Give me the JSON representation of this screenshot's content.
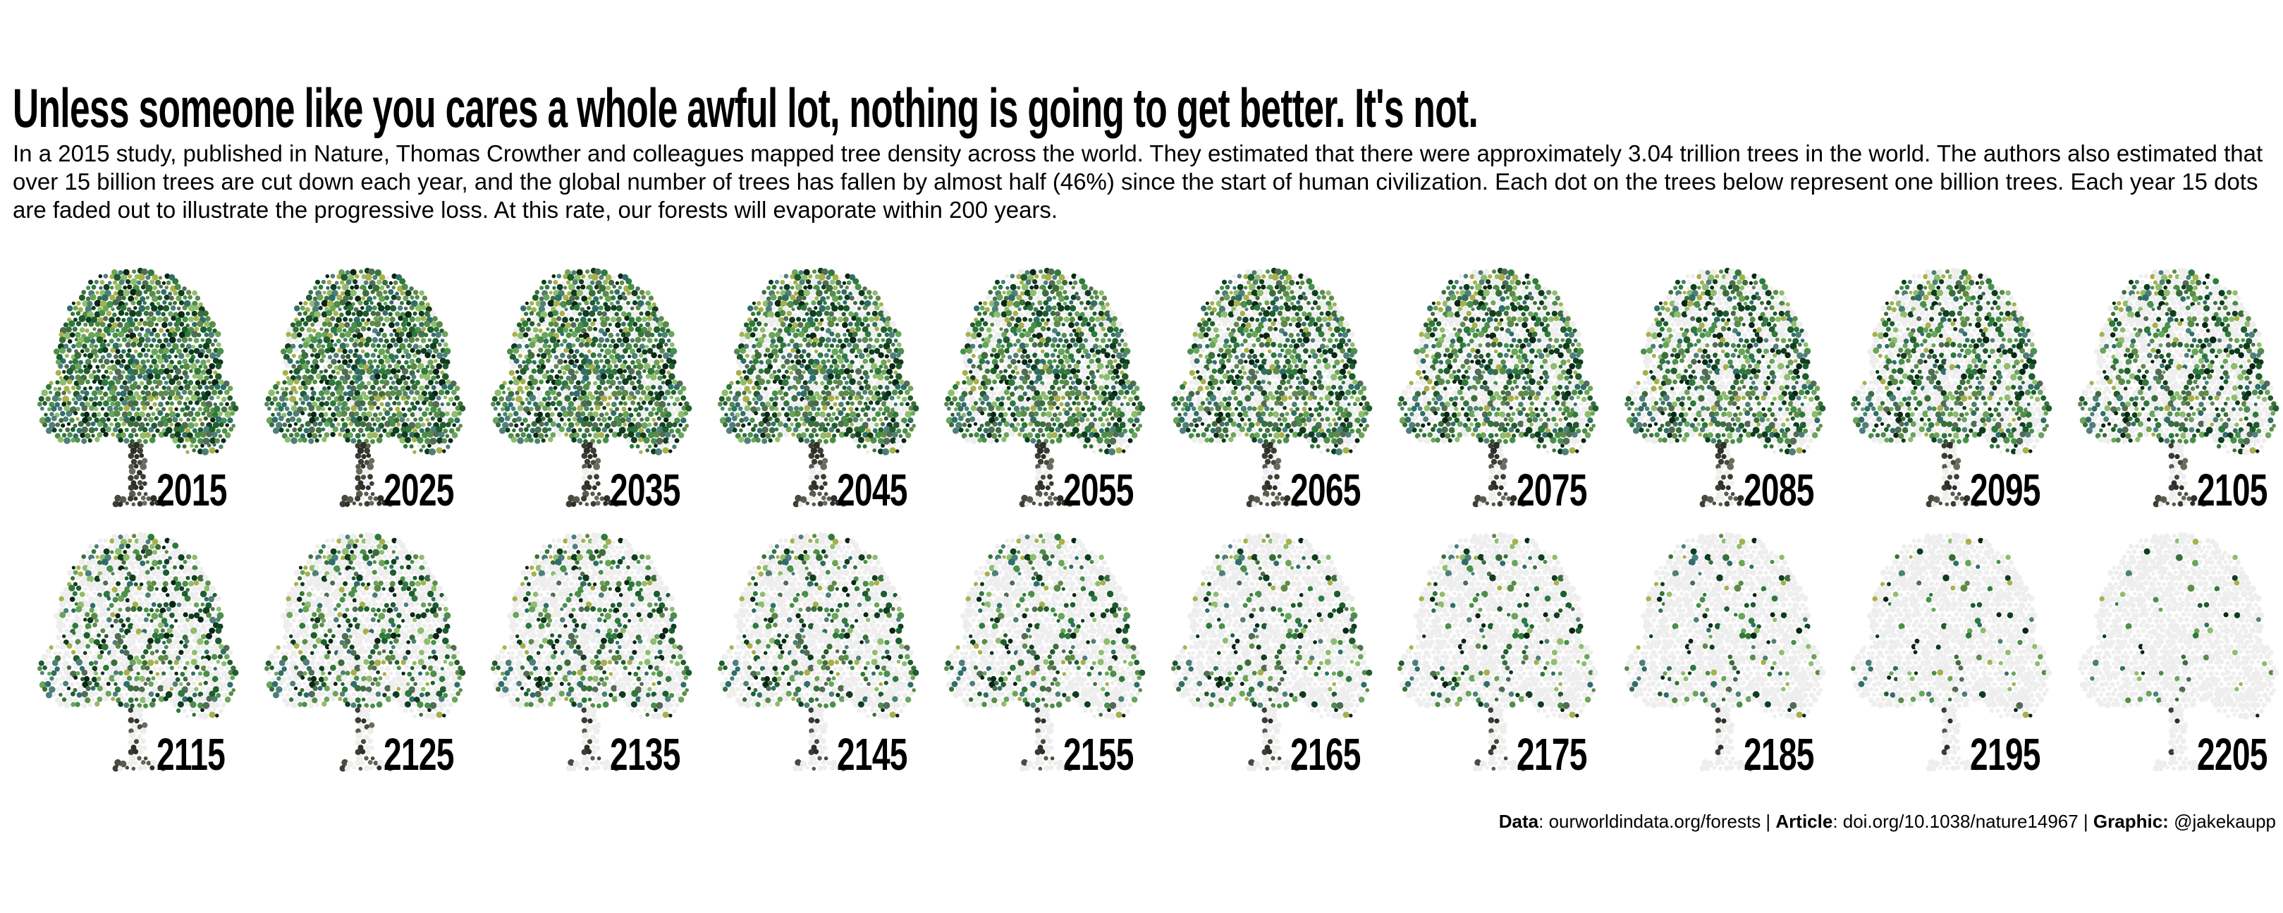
{
  "title": "Unless someone like you cares a whole awful lot, nothing is going to get better. It's not.",
  "subtitle": "In a 2015 study, published in Nature, Thomas Crowther and colleagues mapped tree density across the world. They estimated that there were approximately 3.04 trillion trees in the world. The authors also estimated that over 15 billion trees are cut down each year, and the global number of trees has fallen by almost half (46%) since the start of human civilization. Each dot on the trees below represent one billion trees. Each year 15 dots are faded out to illustrate the progressive loss. At this rate, our forests will evaporate within 200 years.",
  "caption": {
    "data_label": "Data",
    "data_value": ": ourworldindata.org/forests | ",
    "article_label": "Article",
    "article_value": ": doi.org/10.1038/nature14967 | ",
    "graphic_label": "Graphic:",
    "graphic_value": " @jakekaupp"
  },
  "colors": {
    "leaf_palette": [
      "#0f3d1f",
      "#1f5c2e",
      "#2e7a3c",
      "#4a8f4a",
      "#6aa55a",
      "#8fbd6e",
      "#3b6e3b",
      "#0a2614",
      "#5d8a4a",
      "#a7b04a",
      "#4e7f7a",
      "#2f6e6a",
      "#526b55"
    ],
    "trunk_palette": [
      "#4a4a40",
      "#5a5a4e",
      "#3d3d35",
      "#6b6b5c",
      "#2f2f2a"
    ],
    "faded": "#eeeeee"
  },
  "chart_data": {
    "type": "small-multiples dot pictogram",
    "unit": "one dot = one billion trees",
    "initial_trees_billion": 3040,
    "loss_per_year_billion": 15,
    "panels": [
      {
        "year": "2015",
        "remaining_billion": 3040
      },
      {
        "year": "2025",
        "remaining_billion": 2890
      },
      {
        "year": "2035",
        "remaining_billion": 2740
      },
      {
        "year": "2045",
        "remaining_billion": 2590
      },
      {
        "year": "2055",
        "remaining_billion": 2440
      },
      {
        "year": "2065",
        "remaining_billion": 2290
      },
      {
        "year": "2075",
        "remaining_billion": 2140
      },
      {
        "year": "2085",
        "remaining_billion": 1990
      },
      {
        "year": "2095",
        "remaining_billion": 1840
      },
      {
        "year": "2105",
        "remaining_billion": 1690
      },
      {
        "year": "2115",
        "remaining_billion": 1540
      },
      {
        "year": "2125",
        "remaining_billion": 1390
      },
      {
        "year": "2135",
        "remaining_billion": 1240
      },
      {
        "year": "2145",
        "remaining_billion": 1090
      },
      {
        "year": "2155",
        "remaining_billion": 940
      },
      {
        "year": "2165",
        "remaining_billion": 790
      },
      {
        "year": "2175",
        "remaining_billion": 640
      },
      {
        "year": "2185",
        "remaining_billion": 490
      },
      {
        "year": "2195",
        "remaining_billion": 340
      },
      {
        "year": "2205",
        "remaining_billion": 190
      }
    ]
  }
}
